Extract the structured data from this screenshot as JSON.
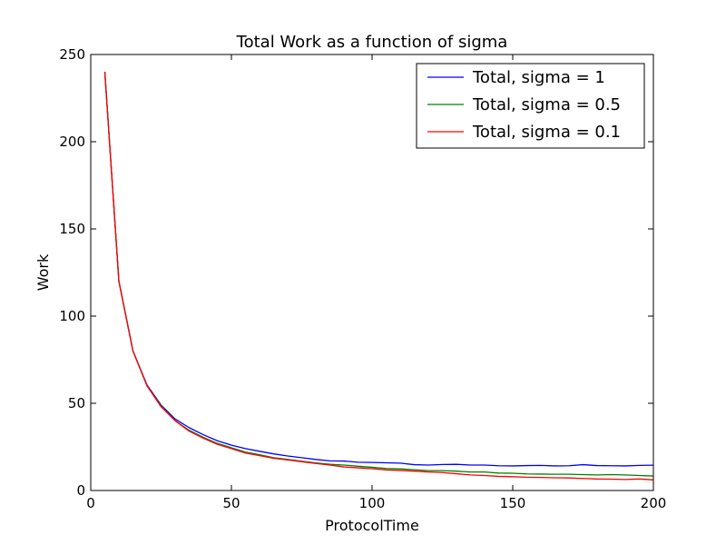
{
  "chart_data": {
    "type": "line",
    "title": "Total Work as a function of sigma",
    "xlabel": "ProtocolTime",
    "ylabel": "Work",
    "xlim": [
      0,
      200
    ],
    "ylim": [
      0,
      250
    ],
    "xticks": [
      0,
      50,
      100,
      150,
      200
    ],
    "yticks": [
      0,
      50,
      100,
      150,
      200,
      250
    ],
    "grid": false,
    "legend_position": "top-right",
    "series": [
      {
        "name": "Total, sigma = 1",
        "color": "#0000ff",
        "x": [
          5,
          10,
          15,
          20,
          25,
          30,
          35,
          40,
          45,
          50,
          55,
          60,
          65,
          70,
          75,
          80,
          85,
          90,
          95,
          100,
          105,
          110,
          115,
          120,
          125,
          130,
          135,
          140,
          145,
          150,
          155,
          160,
          165,
          170,
          175,
          180,
          185,
          190,
          195,
          200
        ],
        "y": [
          240,
          120,
          80,
          60.5,
          49,
          41,
          36,
          32,
          28.5,
          26,
          24,
          22.5,
          21,
          19.8,
          18.8,
          17.8,
          17,
          16.9,
          16.2,
          16.1,
          15.9,
          15.7,
          14.8,
          14.6,
          14.9,
          15,
          14.6,
          14.6,
          14.2,
          14.1,
          14.3,
          14.4,
          14.1,
          14.2,
          14.8,
          14.3,
          14.2,
          14.1,
          14.4,
          14.5
        ]
      },
      {
        "name": "Total, sigma = 0.5",
        "color": "#008000",
        "x": [
          5,
          10,
          15,
          20,
          25,
          30,
          35,
          40,
          45,
          50,
          55,
          60,
          65,
          70,
          75,
          80,
          85,
          90,
          95,
          100,
          105,
          110,
          115,
          120,
          125,
          130,
          135,
          140,
          145,
          150,
          155,
          160,
          165,
          170,
          175,
          180,
          185,
          190,
          195,
          200
        ],
        "y": [
          240,
          120,
          80,
          60,
          48.5,
          40,
          34.5,
          30.5,
          27,
          24.5,
          22,
          20.5,
          18.8,
          17.8,
          16.8,
          15.8,
          15,
          14.6,
          13.9,
          13.3,
          12.6,
          12.4,
          11.9,
          11.4,
          11.4,
          11.1,
          10.6,
          10.6,
          10,
          9.9,
          9.5,
          9.4,
          9.3,
          9.3,
          9.1,
          8.9,
          9.1,
          8.9,
          8.6,
          8.3
        ]
      },
      {
        "name": "Total, sigma = 0.1",
        "color": "#ff0000",
        "x": [
          5,
          10,
          15,
          20,
          25,
          30,
          35,
          40,
          45,
          50,
          55,
          60,
          65,
          70,
          75,
          80,
          85,
          90,
          95,
          100,
          105,
          110,
          115,
          120,
          125,
          130,
          135,
          140,
          145,
          150,
          155,
          160,
          165,
          170,
          175,
          180,
          185,
          190,
          195,
          200
        ],
        "y": [
          240,
          120,
          80,
          60,
          48,
          40,
          34,
          30,
          26.5,
          24,
          21.5,
          20,
          18.5,
          17.5,
          16.5,
          15.5,
          14.6,
          13.5,
          13,
          12.5,
          11.8,
          11.5,
          11.1,
          10.6,
          10.3,
          9.6,
          8.9,
          8.6,
          8.1,
          7.9,
          7.6,
          7.5,
          7.3,
          7.2,
          6.9,
          6.6,
          6.5,
          6.3,
          6.6,
          6.1
        ]
      }
    ]
  }
}
